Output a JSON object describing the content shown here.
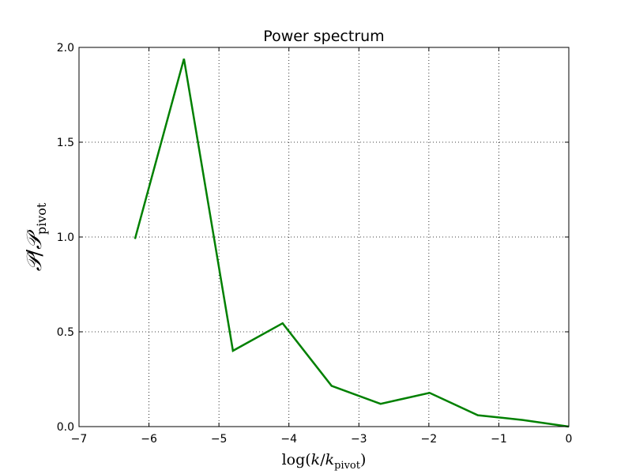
{
  "chart_data": {
    "type": "line",
    "title": "Power spectrum",
    "xlabel": {
      "pre": "log(",
      "k": "k",
      "slash": "/",
      "k2": "k",
      "sub": "pivot",
      "post": ")"
    },
    "ylabel": {
      "P": "𝒫",
      "slash": "/",
      "P2": "𝒫",
      "sub": "pivot"
    },
    "xlim": [
      -7,
      0
    ],
    "ylim": [
      0.0,
      2.0
    ],
    "xticks": [
      -7,
      -6,
      -5,
      -4,
      -3,
      -2,
      -1,
      0
    ],
    "xtick_labels": [
      "−7",
      "−6",
      "−5",
      "−4",
      "−3",
      "−2",
      "−1",
      "0"
    ],
    "yticks": [
      0.0,
      0.5,
      1.0,
      1.5,
      2.0
    ],
    "ytick_labels": [
      "0.0",
      "0.5",
      "1.0",
      "1.5",
      "2.0"
    ],
    "grid": true,
    "series": [
      {
        "color": "#008000",
        "x": [
          -6.2,
          -5.5,
          -4.8,
          -4.09,
          -3.39,
          -2.69,
          -1.99,
          -1.3,
          -0.66,
          0.0
        ],
        "y": [
          0.99,
          1.94,
          0.4,
          0.545,
          0.215,
          0.12,
          0.178,
          0.06,
          0.035,
          0.0
        ]
      }
    ]
  }
}
